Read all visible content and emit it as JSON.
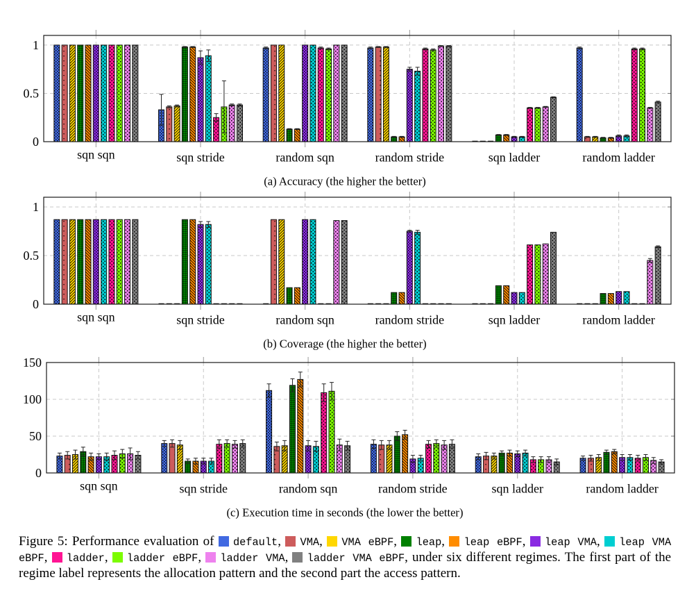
{
  "figure": {
    "caption_prefix": "Figure 5: Performance evaluation of",
    "legend_separator": ",",
    "caption_suffix": "under six different regimes. The first part of the regime label represents the allocation pattern and the second part the access pattern."
  },
  "legend": [
    {
      "label": "default",
      "color": "#4169E1",
      "pattern": "crosshatch dots"
    },
    {
      "label": "VMA",
      "color": "#CD5C5C",
      "pattern": "sparse dots"
    },
    {
      "label": "VMA eBPF",
      "color": "#FFD700",
      "pattern": "north east lines"
    },
    {
      "label": "leap",
      "color": "#008000",
      "pattern": "grid"
    },
    {
      "label": "leap eBPF",
      "color": "#FF8C00",
      "pattern": "north west lines"
    },
    {
      "label": "leap VMA",
      "color": "#8A2BE2",
      "pattern": "crosshatch dots"
    },
    {
      "label": "leap VMA eBPF",
      "color": "#00CED1",
      "pattern": "dots"
    },
    {
      "label": "ladder",
      "color": "#FF1493",
      "pattern": "dots"
    },
    {
      "label": "ladder eBPF",
      "color": "#7CFC00",
      "pattern": "dots"
    },
    {
      "label": "ladder VMA",
      "color": "#EE82EE",
      "pattern": "dots"
    },
    {
      "label": "ladder VMA eBPF",
      "color": "#808080",
      "pattern": "dots"
    }
  ],
  "chart_data": [
    {
      "type": "bar",
      "title": "(a) Accuracy (the higher the better)",
      "xlabel": "",
      "ylabel": "",
      "categories": [
        "sqn sqn",
        "sqn stride",
        "random sqn",
        "random stride",
        "sqn ladder",
        "random ladder"
      ],
      "ylim": [
        0,
        1.1
      ],
      "yticks": [
        0,
        0.5,
        1
      ],
      "ytick_labels": [
        "0",
        "0.5",
        "1"
      ],
      "grid": true,
      "series": [
        {
          "name": "default",
          "values": [
            1.0,
            0.33,
            0.97,
            0.97,
            0.0,
            0.97
          ],
          "errors": [
            0,
            0.16,
            0.01,
            0.01,
            0,
            0.01
          ]
        },
        {
          "name": "VMA",
          "values": [
            1.0,
            0.36,
            1.0,
            0.98,
            0.0,
            0.05
          ],
          "errors": [
            0,
            0.01,
            0,
            0.005,
            0,
            0.005
          ]
        },
        {
          "name": "VMA eBPF",
          "values": [
            1.0,
            0.37,
            1.0,
            0.98,
            0.0,
            0.05
          ],
          "errors": [
            0,
            0.01,
            0,
            0.005,
            0,
            0.005
          ]
        },
        {
          "name": "leap",
          "values": [
            1.0,
            0.98,
            0.13,
            0.05,
            0.07,
            0.04
          ],
          "errors": [
            0,
            0.005,
            0.005,
            0.005,
            0.005,
            0.005
          ]
        },
        {
          "name": "leap eBPF",
          "values": [
            1.0,
            0.98,
            0.13,
            0.05,
            0.07,
            0.04
          ],
          "errors": [
            0,
            0.005,
            0.005,
            0.005,
            0.005,
            0.005
          ]
        },
        {
          "name": "leap VMA",
          "values": [
            1.0,
            0.87,
            1.0,
            0.75,
            0.05,
            0.06
          ],
          "errors": [
            0,
            0.07,
            0,
            0.02,
            0.005,
            0.01
          ]
        },
        {
          "name": "leap VMA eBPF",
          "values": [
            1.0,
            0.89,
            1.0,
            0.73,
            0.05,
            0.06
          ],
          "errors": [
            0,
            0.06,
            0,
            0.04,
            0.005,
            0.01
          ]
        },
        {
          "name": "ladder",
          "values": [
            1.0,
            0.25,
            0.97,
            0.96,
            0.35,
            0.96
          ],
          "errors": [
            0,
            0.04,
            0.01,
            0.01,
            0.005,
            0.01
          ]
        },
        {
          "name": "ladder eBPF",
          "values": [
            1.0,
            0.36,
            0.96,
            0.95,
            0.35,
            0.96
          ],
          "errors": [
            0,
            0.27,
            0.01,
            0.01,
            0.005,
            0.01
          ]
        },
        {
          "name": "ladder VMA",
          "values": [
            1.0,
            0.38,
            1.0,
            0.99,
            0.36,
            0.35
          ],
          "errors": [
            0,
            0.01,
            0,
            0.005,
            0.005,
            0.005
          ]
        },
        {
          "name": "ladder VMA eBPF",
          "values": [
            1.0,
            0.38,
            1.0,
            0.99,
            0.46,
            0.41
          ],
          "errors": [
            0,
            0.01,
            0,
            0.005,
            0.005,
            0.01
          ]
        }
      ]
    },
    {
      "type": "bar",
      "title": "(b) Coverage (the higher the better)",
      "xlabel": "",
      "ylabel": "",
      "categories": [
        "sqn sqn",
        "sqn stride",
        "random sqn",
        "random stride",
        "sqn ladder",
        "random ladder"
      ],
      "ylim": [
        0,
        1.1
      ],
      "yticks": [
        0,
        0.5,
        1
      ],
      "ytick_labels": [
        "0",
        "0.5",
        "1"
      ],
      "grid": true,
      "series": [
        {
          "name": "default",
          "values": [
            0.87,
            0.0,
            0.0,
            0.0,
            0.0,
            0.0
          ],
          "errors": [
            0,
            0,
            0,
            0,
            0,
            0
          ]
        },
        {
          "name": "VMA",
          "values": [
            0.87,
            0.0,
            0.87,
            0.0,
            0.0,
            0.0
          ],
          "errors": [
            0,
            0,
            0,
            0,
            0,
            0
          ]
        },
        {
          "name": "VMA eBPF",
          "values": [
            0.87,
            0.0,
            0.87,
            0.0,
            0.0,
            0.0
          ],
          "errors": [
            0,
            0,
            0,
            0,
            0,
            0
          ]
        },
        {
          "name": "leap",
          "values": [
            0.87,
            0.87,
            0.17,
            0.12,
            0.19,
            0.11
          ],
          "errors": [
            0,
            0,
            0,
            0,
            0,
            0
          ]
        },
        {
          "name": "leap eBPF",
          "values": [
            0.87,
            0.87,
            0.17,
            0.12,
            0.19,
            0.11
          ],
          "errors": [
            0,
            0,
            0,
            0,
            0,
            0
          ]
        },
        {
          "name": "leap VMA",
          "values": [
            0.87,
            0.82,
            0.87,
            0.75,
            0.12,
            0.13
          ],
          "errors": [
            0,
            0.03,
            0,
            0.01,
            0,
            0
          ]
        },
        {
          "name": "leap VMA eBPF",
          "values": [
            0.87,
            0.82,
            0.87,
            0.74,
            0.12,
            0.13
          ],
          "errors": [
            0,
            0.03,
            0,
            0.02,
            0,
            0
          ]
        },
        {
          "name": "ladder",
          "values": [
            0.87,
            0.0,
            0.0,
            0.0,
            0.61,
            0.0
          ],
          "errors": [
            0,
            0,
            0,
            0,
            0,
            0
          ]
        },
        {
          "name": "ladder eBPF",
          "values": [
            0.87,
            0.0,
            0.0,
            0.0,
            0.61,
            0.0
          ],
          "errors": [
            0,
            0,
            0,
            0,
            0,
            0
          ]
        },
        {
          "name": "ladder VMA",
          "values": [
            0.87,
            0.0,
            0.86,
            0.0,
            0.62,
            0.45
          ],
          "errors": [
            0,
            0,
            0,
            0,
            0,
            0.02
          ]
        },
        {
          "name": "ladder VMA eBPF",
          "values": [
            0.87,
            0.0,
            0.86,
            0.0,
            0.74,
            0.59
          ],
          "errors": [
            0,
            0,
            0,
            0,
            0,
            0.01
          ]
        }
      ]
    },
    {
      "type": "bar",
      "title": "(c) Execution time in seconds (the lower the better)",
      "xlabel": "",
      "ylabel": "",
      "categories": [
        "sqn sqn",
        "sqn stride",
        "random sqn",
        "random stride",
        "sqn ladder",
        "random ladder"
      ],
      "ylim": [
        0,
        150
      ],
      "yticks": [
        0,
        50,
        100,
        150
      ],
      "ytick_labels": [
        "0",
        "50",
        "100",
        "150"
      ],
      "grid": true,
      "series": [
        {
          "name": "default",
          "values": [
            23,
            40,
            112,
            39,
            22,
            20
          ],
          "errors": [
            4,
            4,
            9,
            6,
            4,
            3
          ]
        },
        {
          "name": "VMA",
          "values": [
            24,
            40,
            36,
            38,
            23,
            20
          ],
          "errors": [
            5,
            5,
            6,
            6,
            5,
            4
          ]
        },
        {
          "name": "VMA eBPF",
          "values": [
            25,
            38,
            37,
            38,
            23,
            21
          ],
          "errors": [
            6,
            6,
            7,
            6,
            4,
            4
          ]
        },
        {
          "name": "leap",
          "values": [
            29,
            16,
            119,
            50,
            27,
            28
          ],
          "errors": [
            6,
            3,
            9,
            6,
            3,
            3
          ]
        },
        {
          "name": "leap eBPF",
          "values": [
            22,
            16,
            127,
            52,
            27,
            29
          ],
          "errors": [
            5,
            4,
            10,
            6,
            4,
            3
          ]
        },
        {
          "name": "leap VMA",
          "values": [
            22,
            16,
            37,
            19,
            26,
            21
          ],
          "errors": [
            4,
            4,
            7,
            5,
            4,
            4
          ]
        },
        {
          "name": "leap VMA eBPF",
          "values": [
            22,
            16,
            36,
            20,
            27,
            21
          ],
          "errors": [
            5,
            4,
            7,
            4,
            4,
            4
          ]
        },
        {
          "name": "ladder",
          "values": [
            24,
            39,
            109,
            39,
            18,
            20
          ],
          "errors": [
            6,
            6,
            12,
            5,
            4,
            4
          ]
        },
        {
          "name": "ladder eBPF",
          "values": [
            26,
            40,
            111,
            40,
            18,
            21
          ],
          "errors": [
            6,
            5,
            12,
            5,
            4,
            4
          ]
        },
        {
          "name": "ladder VMA",
          "values": [
            26,
            39,
            38,
            38,
            18,
            17
          ],
          "errors": [
            8,
            5,
            8,
            6,
            4,
            4
          ]
        },
        {
          "name": "ladder VMA eBPF",
          "values": [
            24,
            40,
            37,
            39,
            15,
            15
          ],
          "errors": [
            5,
            5,
            6,
            6,
            4,
            3
          ]
        }
      ]
    }
  ]
}
